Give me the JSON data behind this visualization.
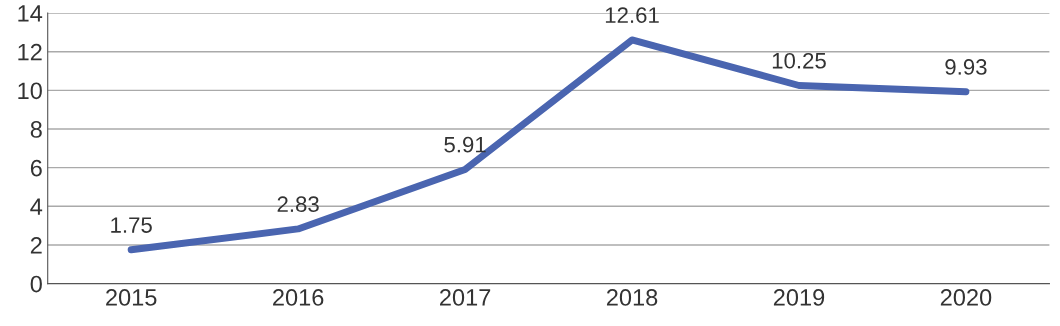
{
  "chart_data": {
    "type": "line",
    "categories": [
      "2015",
      "2016",
      "2017",
      "2018",
      "2019",
      "2020"
    ],
    "series": [
      {
        "color": "#4a65b0",
        "values": [
          1.75,
          2.83,
          5.91,
          12.61,
          10.25,
          9.93
        ]
      }
    ],
    "ylim": [
      0,
      14
    ],
    "yticks": [
      0,
      2,
      4,
      6,
      8,
      10,
      12,
      14
    ],
    "grid": "y",
    "data_labels": true,
    "marker": "none",
    "line_style": "solid"
  }
}
